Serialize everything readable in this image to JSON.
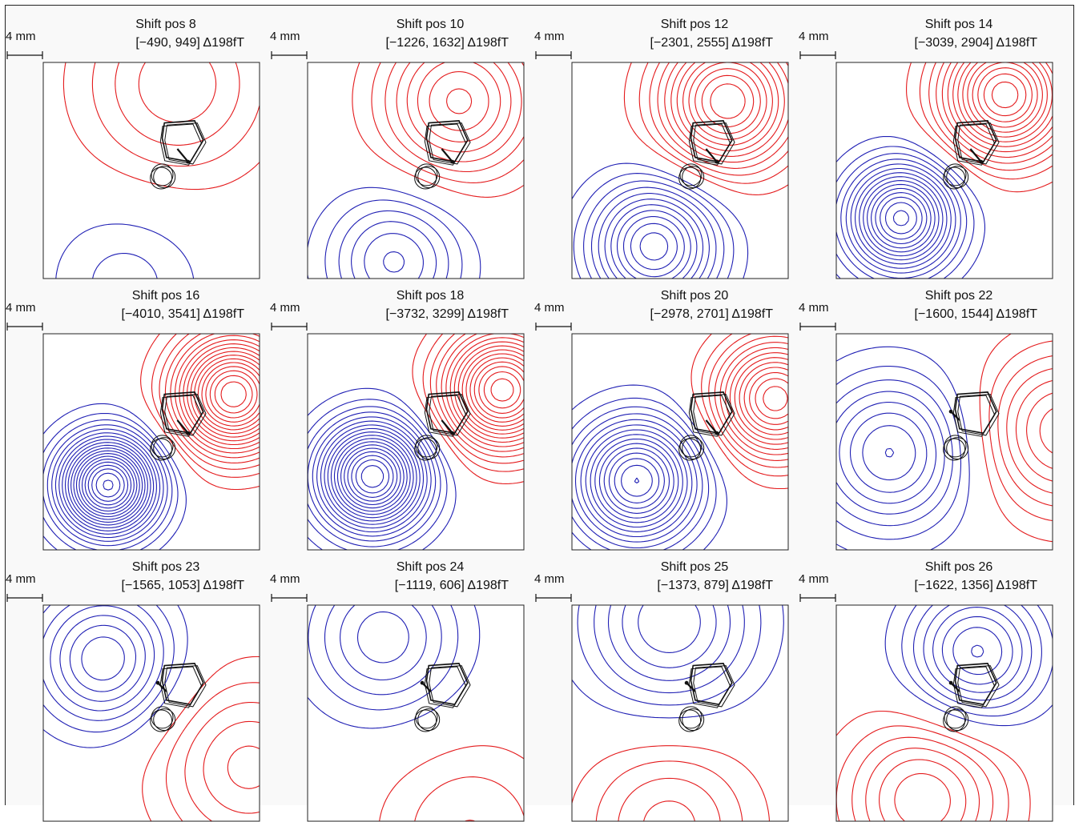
{
  "figure": {
    "scale_label": "4 mm",
    "colors": {
      "positive": "#e41a1c",
      "negative": "#1f1fb4",
      "sensor": "#111111"
    },
    "panels": [
      {
        "title": "Shift pos 8",
        "range": "[−490, 949] Δ198fT",
        "min": -490,
        "max": 949,
        "step": 198,
        "dipole_angle_deg": 5,
        "dipole_strength": 0.95,
        "pos_center": [
          0.62,
          0.1
        ],
        "neg_center": [
          0.38,
          1.02
        ],
        "pos_spread": 0.42,
        "neg_spread": 0.34,
        "row": 0,
        "col": 0,
        "sensor_variant": 0
      },
      {
        "title": "Shift pos 10",
        "range": "[−1226, 1632] Δ198fT",
        "min": -1226,
        "max": 1632,
        "step": 198,
        "dipole_angle_deg": 20,
        "dipole_strength": 1.0,
        "pos_center": [
          0.7,
          0.18
        ],
        "neg_center": [
          0.4,
          0.92
        ],
        "pos_spread": 0.34,
        "neg_spread": 0.3,
        "row": 0,
        "col": 1,
        "sensor_variant": 0
      },
      {
        "title": "Shift pos 12",
        "range": "[−2301, 2555] Δ198fT",
        "min": -2301,
        "max": 2555,
        "step": 198,
        "dipole_angle_deg": 28,
        "dipole_strength": 1.0,
        "pos_center": [
          0.72,
          0.18
        ],
        "neg_center": [
          0.38,
          0.85
        ],
        "pos_spread": 0.3,
        "neg_spread": 0.28,
        "row": 0,
        "col": 2,
        "sensor_variant": 0
      },
      {
        "title": "Shift pos 14",
        "range": "[−3039, 2904] Δ198fT",
        "min": -3039,
        "max": 2904,
        "step": 198,
        "dipole_angle_deg": 33,
        "dipole_strength": 1.0,
        "pos_center": [
          0.78,
          0.15
        ],
        "neg_center": [
          0.3,
          0.72
        ],
        "pos_spread": 0.28,
        "neg_spread": 0.24,
        "row": 0,
        "col": 3,
        "sensor_variant": 0
      },
      {
        "title": "Shift pos 16",
        "range": "[−4010, 3541] Δ198fT",
        "min": -4010,
        "max": 3541,
        "step": 198,
        "dipole_angle_deg": 52,
        "dipole_strength": 1.0,
        "pos_center": [
          0.88,
          0.28
        ],
        "neg_center": [
          0.3,
          0.7
        ],
        "pos_spread": 0.26,
        "neg_spread": 0.22,
        "row": 1,
        "col": 0,
        "sensor_variant": 1
      },
      {
        "title": "Shift pos 18",
        "range": "[−3732, 3299] Δ198fT",
        "min": -3732,
        "max": 3299,
        "step": 198,
        "dipole_angle_deg": 52,
        "dipole_strength": 1.0,
        "pos_center": [
          0.9,
          0.26
        ],
        "neg_center": [
          0.3,
          0.66
        ],
        "pos_spread": 0.26,
        "neg_spread": 0.24,
        "row": 1,
        "col": 1,
        "sensor_variant": 1
      },
      {
        "title": "Shift pos 20",
        "range": "[−2978, 2701] Δ198fT",
        "min": -2978,
        "max": 2701,
        "step": 198,
        "dipole_angle_deg": 58,
        "dipole_strength": 1.0,
        "pos_center": [
          0.94,
          0.3
        ],
        "neg_center": [
          0.3,
          0.68
        ],
        "pos_spread": 0.26,
        "neg_spread": 0.27,
        "row": 1,
        "col": 2,
        "sensor_variant": 1
      },
      {
        "title": "Shift pos 22",
        "range": "[−1600, 1544] Δ198fT",
        "min": -1600,
        "max": 1544,
        "step": 198,
        "dipole_angle_deg": 80,
        "dipole_strength": 0.9,
        "pos_center": [
          1.05,
          0.45
        ],
        "neg_center": [
          0.25,
          0.55
        ],
        "pos_spread": 0.36,
        "neg_spread": 0.34,
        "row": 1,
        "col": 3,
        "sensor_variant": 2
      },
      {
        "title": "Shift pos 23",
        "range": "[−1565, 1053] Δ198fT",
        "min": -1565,
        "max": 1053,
        "step": 198,
        "dipole_angle_deg": 100,
        "dipole_strength": 0.9,
        "pos_center": [
          0.95,
          0.75
        ],
        "neg_center": [
          0.28,
          0.25
        ],
        "pos_spread": 0.4,
        "neg_spread": 0.3,
        "row": 2,
        "col": 0,
        "sensor_variant": 2
      },
      {
        "title": "Shift pos 24",
        "range": "[−1119, 606] Δ198fT",
        "min": -1119,
        "max": 606,
        "step": 198,
        "dipole_angle_deg": 140,
        "dipole_strength": 0.85,
        "pos_center": [
          0.75,
          1.05
        ],
        "neg_center": [
          0.35,
          0.15
        ],
        "pos_spread": 0.4,
        "neg_spread": 0.34,
        "row": 2,
        "col": 1,
        "sensor_variant": 2
      },
      {
        "title": "Shift pos 25",
        "range": "[−1373, 879] Δ198fT",
        "min": -1373,
        "max": 879,
        "step": 198,
        "dipole_angle_deg": 175,
        "dipole_strength": 0.85,
        "pos_center": [
          0.45,
          1.02
        ],
        "neg_center": [
          0.45,
          0.08
        ],
        "pos_spread": 0.38,
        "neg_spread": 0.38,
        "row": 2,
        "col": 2,
        "sensor_variant": 2
      },
      {
        "title": "Shift pos 26",
        "range": "[−1622, 1356] Δ198fT",
        "min": -1622,
        "max": 1356,
        "step": 198,
        "dipole_angle_deg": 170,
        "dipole_strength": 0.9,
        "pos_center": [
          0.4,
          0.9
        ],
        "neg_center": [
          0.65,
          0.22
        ],
        "pos_spread": 0.36,
        "neg_spread": 0.3,
        "row": 2,
        "col": 3,
        "sensor_variant": 2
      }
    ]
  },
  "chart_data": {
    "type": "heatmap",
    "panel_titles": [
      "Shift pos 8",
      "Shift pos 10",
      "Shift pos 12",
      "Shift pos 14",
      "Shift pos 16",
      "Shift pos 18",
      "Shift pos 20",
      "Shift pos 22",
      "Shift pos 23",
      "Shift pos 24",
      "Shift pos 25",
      "Shift pos 26"
    ],
    "ranges_fT": [
      [
        -490,
        949
      ],
      [
        -1226,
        1632
      ],
      [
        -2301,
        2555
      ],
      [
        -3039,
        2904
      ],
      [
        -4010,
        3541
      ],
      [
        -3732,
        3299
      ],
      [
        -2978,
        2701
      ],
      [
        -1600,
        1544
      ],
      [
        -1565,
        1053
      ],
      [
        -1119,
        606
      ],
      [
        -1373,
        879
      ],
      [
        -1622,
        1356
      ]
    ],
    "contour_step_fT": 198,
    "scale_bar": "4 mm",
    "grid": false
  }
}
